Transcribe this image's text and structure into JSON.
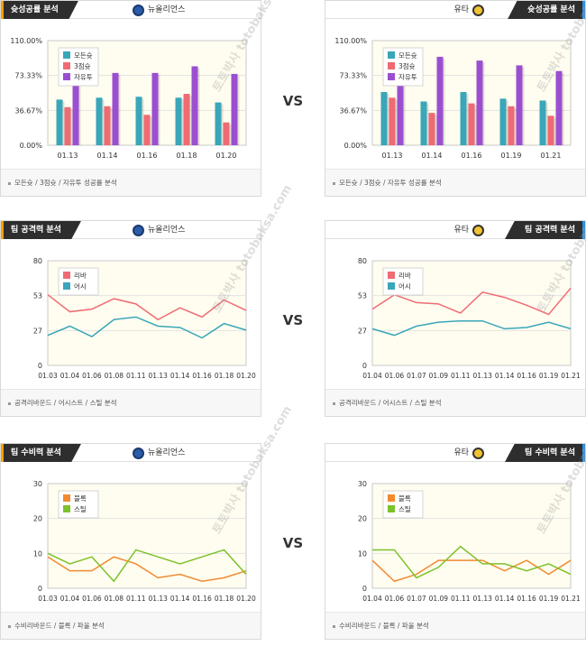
{
  "vs_label": "VS",
  "watermark": "토토박사 totobaksa.com",
  "sections": [
    {
      "title": "슛성공률 분석",
      "footer": "모든슛 / 3점슛 / 자유투 성공률 분석",
      "left_team": "뉴올리언스",
      "right_team": "유타"
    },
    {
      "title": "팀 공격력 분석",
      "footer": "공격리바운드 / 어시스트 / 스틸 분석",
      "left_team": "뉴올리언스",
      "right_team": "유타"
    },
    {
      "title": "팀 수비력 분석",
      "footer": "수비리바운드 / 블록 / 파울 분석",
      "left_team": "뉴올리언스",
      "right_team": "유타"
    }
  ],
  "colors": {
    "teal": "#3aa6b9",
    "red": "#ef6b73",
    "purple": "#9b4fd0",
    "orange": "#f28a30",
    "green": "#7cc22a"
  },
  "chart_data": [
    {
      "type": "bar",
      "categories": [
        "01.13",
        "01.14",
        "01.16",
        "01.18",
        "01.20"
      ],
      "ylim": [
        0,
        110
      ],
      "yticks": [
        "0.00%",
        "36.67%",
        "73.33%",
        "110.00%"
      ],
      "series": [
        {
          "name": "모든슛",
          "values": [
            48,
            50,
            51,
            50,
            45
          ]
        },
        {
          "name": "3점슛",
          "values": [
            40,
            41,
            32,
            54,
            24
          ]
        },
        {
          "name": "자유투",
          "values": [
            66,
            76,
            76,
            83,
            75
          ]
        }
      ]
    },
    {
      "type": "bar",
      "categories": [
        "01.13",
        "01.14",
        "01.16",
        "01.19",
        "01.21"
      ],
      "ylim": [
        0,
        110
      ],
      "yticks": [
        "0.00%",
        "36.67%",
        "73.33%",
        "110.00%"
      ],
      "series": [
        {
          "name": "모든슛",
          "values": [
            56,
            46,
            56,
            49,
            47
          ]
        },
        {
          "name": "3점슛",
          "values": [
            50,
            34,
            44,
            41,
            31
          ]
        },
        {
          "name": "자유투",
          "values": [
            77,
            93,
            89,
            84,
            78
          ]
        }
      ]
    },
    {
      "type": "line",
      "categories": [
        "01.03",
        "01.04",
        "01.06",
        "01.08",
        "01.11",
        "01.13",
        "01.14",
        "01.16",
        "01.18",
        "01.20"
      ],
      "ylim": [
        0,
        80
      ],
      "yticks": [
        "0",
        "27",
        "53",
        "80"
      ],
      "series": [
        {
          "name": "리바",
          "values": [
            54,
            41,
            43,
            51,
            47,
            35,
            44,
            37,
            50,
            42
          ]
        },
        {
          "name": "어시",
          "values": [
            23,
            30,
            22,
            35,
            37,
            30,
            29,
            21,
            32,
            27
          ]
        }
      ]
    },
    {
      "type": "line",
      "categories": [
        "01.04",
        "01.06",
        "01.07",
        "01.09",
        "01.11",
        "01.13",
        "01.14",
        "01.16",
        "01.19",
        "01.21"
      ],
      "ylim": [
        0,
        80
      ],
      "yticks": [
        "0",
        "27",
        "53",
        "80"
      ],
      "series": [
        {
          "name": "리바",
          "values": [
            43,
            54,
            48,
            47,
            40,
            56,
            52,
            46,
            39,
            59
          ]
        },
        {
          "name": "어시",
          "values": [
            28,
            23,
            30,
            33,
            34,
            34,
            28,
            29,
            33,
            28
          ]
        }
      ]
    },
    {
      "type": "line",
      "categories": [
        "01.03",
        "01.04",
        "01.06",
        "01.08",
        "01.11",
        "01.13",
        "01.14",
        "01.16",
        "01.18",
        "01.20"
      ],
      "ylim": [
        0,
        30
      ],
      "yticks": [
        "0",
        "10",
        "20",
        "30"
      ],
      "series": [
        {
          "name": "블록",
          "values": [
            9,
            5,
            5,
            9,
            7,
            3,
            4,
            2,
            3,
            5
          ]
        },
        {
          "name": "스틸",
          "values": [
            10,
            7,
            9,
            2,
            11,
            9,
            7,
            9,
            11,
            4
          ]
        }
      ]
    },
    {
      "type": "line",
      "categories": [
        "01.04",
        "01.06",
        "01.07",
        "01.09",
        "01.11",
        "01.13",
        "01.14",
        "01.16",
        "01.19",
        "01.21"
      ],
      "ylim": [
        0,
        30
      ],
      "yticks": [
        "0",
        "10",
        "20",
        "30"
      ],
      "series": [
        {
          "name": "블록",
          "values": [
            8,
            2,
            4,
            8,
            8,
            8,
            5,
            8,
            4,
            8
          ]
        },
        {
          "name": "스틸",
          "values": [
            11,
            11,
            3,
            6,
            12,
            7,
            7,
            5,
            7,
            4
          ]
        }
      ]
    }
  ]
}
